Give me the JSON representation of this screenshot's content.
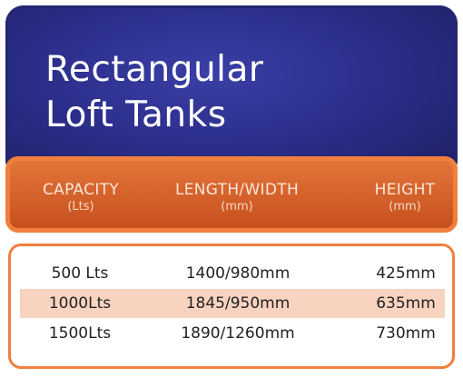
{
  "title": {
    "line1": "Rectangular",
    "line2": "Loft Tanks"
  },
  "columns": [
    {
      "label": "CAPACITY",
      "unit": "(Lts)"
    },
    {
      "label": "LENGTH/WIDTH",
      "unit": "(mm)"
    },
    {
      "label": "HEIGHT",
      "unit": "(mm)"
    }
  ],
  "rows": [
    {
      "capacity": "500 Lts",
      "length_width": "1400/980mm",
      "height": "425mm",
      "highlighted": false
    },
    {
      "capacity": "1000Lts",
      "length_width": "1845/950mm",
      "height": "635mm",
      "highlighted": true
    },
    {
      "capacity": "1500Lts",
      "length_width": "1890/1260mm",
      "height": "730mm",
      "highlighted": false
    }
  ],
  "colors": {
    "title_panel": "#2c2f8c",
    "header_bar": "#d4602a",
    "accent_border": "#f07f3e",
    "row_highlight": "#f8d3c0"
  }
}
